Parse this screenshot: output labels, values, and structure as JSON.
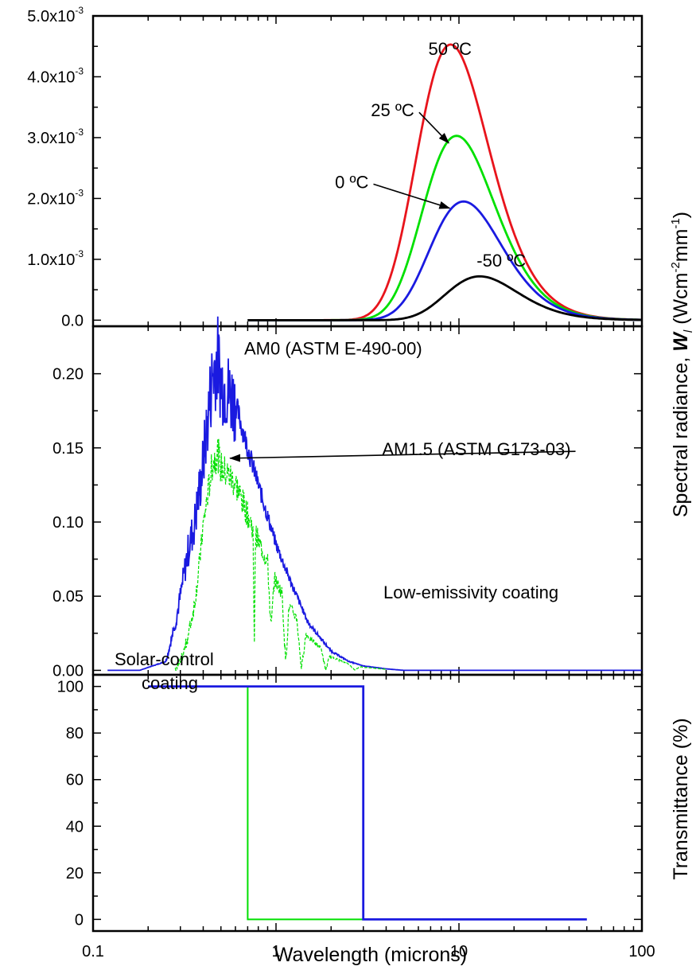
{
  "chart_data": [
    {
      "type": "line",
      "panel": "top",
      "xscale": "log",
      "xlim": [
        0.1,
        100
      ],
      "ylim": [
        -0.0001,
        0.005
      ],
      "yticks": [
        0,
        0.001,
        0.002,
        0.003,
        0.004,
        0.005
      ],
      "ytick_labels": [
        {
          "mant": "0.0",
          "exp": ""
        },
        {
          "mant": "1.0x10",
          "exp": "-3"
        },
        {
          "mant": "2.0x10",
          "exp": "-3"
        },
        {
          "mant": "3.0x10",
          "exp": "-3"
        },
        {
          "mant": "4.0x10",
          "exp": "-3"
        },
        {
          "mant": "5.0x10",
          "exp": "-3"
        }
      ],
      "series": [
        {
          "name": "50 ºC",
          "color": "#e8141c",
          "peak_x": 9.0,
          "peak_y": 0.00453,
          "xmin": 0.7,
          "xmax": 100
        },
        {
          "name": "25 ºC",
          "color": "#00e000",
          "peak_x": 9.7,
          "peak_y": 0.00303,
          "xmin": 0.7,
          "xmax": 100
        },
        {
          "name": "0 ºC",
          "color": "#1a1ae0",
          "peak_x": 10.6,
          "peak_y": 0.00195,
          "xmin": 0.7,
          "xmax": 100
        },
        {
          "name": "-50 ºC",
          "color": "#000000",
          "peak_x": 13.0,
          "peak_y": 0.00072,
          "xmin": 0.7,
          "xmax": 100
        }
      ],
      "annotations": [
        {
          "text": "50 ºC",
          "x": 6.8,
          "y": 0.00436,
          "arrow_to": null
        },
        {
          "text": "25 ºC",
          "x": 3.3,
          "y": 0.00335,
          "arrow_to": [
            8.8,
            0.00291
          ]
        },
        {
          "text": "0 ºC",
          "x": 2.1,
          "y": 0.00217,
          "arrow_to": [
            8.9,
            0.00184
          ]
        },
        {
          "text": "-50 ºC",
          "x": 12.5,
          "y": 0.00088,
          "arrow_to": null
        }
      ]
    },
    {
      "type": "line",
      "panel": "middle",
      "xscale": "log",
      "xlim": [
        0.1,
        100
      ],
      "ylim": [
        -0.003,
        0.232
      ],
      "yticks": [
        0,
        0.05,
        0.1,
        0.15,
        0.2
      ],
      "ytick_labels": [
        "0.00",
        "0.05",
        "0.10",
        "0.15",
        "0.20"
      ],
      "series": [
        {
          "name": "AM0 (ASTM E-490-00)",
          "color": "#1a1ae0"
        },
        {
          "name": "AM1.5 (ASTM G173-03)",
          "color": "#00e000"
        }
      ],
      "envelope_points": [
        [
          0.12,
          0.0
        ],
        [
          0.18,
          0.0
        ],
        [
          0.2,
          0.002
        ],
        [
          0.25,
          0.006
        ],
        [
          0.28,
          0.03
        ],
        [
          0.3,
          0.05
        ],
        [
          0.33,
          0.08
        ],
        [
          0.36,
          0.1
        ],
        [
          0.4,
          0.14
        ],
        [
          0.45,
          0.2
        ],
        [
          0.48,
          0.21
        ],
        [
          0.5,
          0.195
        ],
        [
          0.55,
          0.188
        ],
        [
          0.6,
          0.18
        ],
        [
          0.7,
          0.15
        ],
        [
          0.8,
          0.125
        ],
        [
          1.0,
          0.085
        ],
        [
          1.2,
          0.06
        ],
        [
          1.5,
          0.032
        ],
        [
          2.0,
          0.013
        ],
        [
          2.5,
          0.006
        ],
        [
          3.0,
          0.003
        ],
        [
          4.0,
          0.001
        ],
        [
          5.0,
          0.0
        ],
        [
          100,
          0.0
        ]
      ],
      "annotations": [
        {
          "text": "AM0 (ASTM E-490-00)",
          "x": 0.67,
          "y": 0.213,
          "arrow_to": null
        },
        {
          "text": "AM1.5 (ASTM G173-03)",
          "x": 3.8,
          "y": 0.145,
          "arrow_to": [
            0.56,
            0.143
          ]
        }
      ]
    },
    {
      "type": "line",
      "panel": "bottom",
      "xscale": "log",
      "xlim": [
        0.1,
        100
      ],
      "ylim": [
        -5,
        105
      ],
      "yticks": [
        0,
        20,
        40,
        60,
        80,
        100
      ],
      "ytick_labels": [
        "0",
        "20",
        "40",
        "60",
        "80",
        "100"
      ],
      "xticks": [
        0.1,
        1,
        10,
        100
      ],
      "xtick_labels": [
        "0.1",
        "1",
        "10",
        "100"
      ],
      "series": [
        {
          "name": "Low-emissivity coating",
          "color": "#1a1ae0",
          "points": [
            [
              0.2,
              100
            ],
            [
              3.0,
              100
            ],
            [
              3.0,
              0
            ],
            [
              50,
              0
            ]
          ]
        },
        {
          "name": "Solar-control coating",
          "color": "#00e000",
          "points": [
            [
              0.7,
              100
            ],
            [
              0.7,
              0
            ],
            [
              3.0,
              0
            ]
          ]
        }
      ]
    }
  ],
  "labels": {
    "xlabel": "Wavelength (microns)",
    "ylabel_radiance": "Spectral radiance, ",
    "ylabel_radiance_sym": "W",
    "ylabel_radiance_sub": "l",
    "ylabel_radiance_unit": " (Wcm",
    "ylabel_radiance_exp1": "-2",
    "ylabel_radiance_unit2": "mm",
    "ylabel_radiance_exp2": "-1",
    "ylabel_radiance_close": ")",
    "ylabel_transmittance": "Transmittance (%)",
    "lowe_label": "Low-emissivity coating",
    "solar_label_1": "Solar-control",
    "solar_label_2": "coating"
  }
}
